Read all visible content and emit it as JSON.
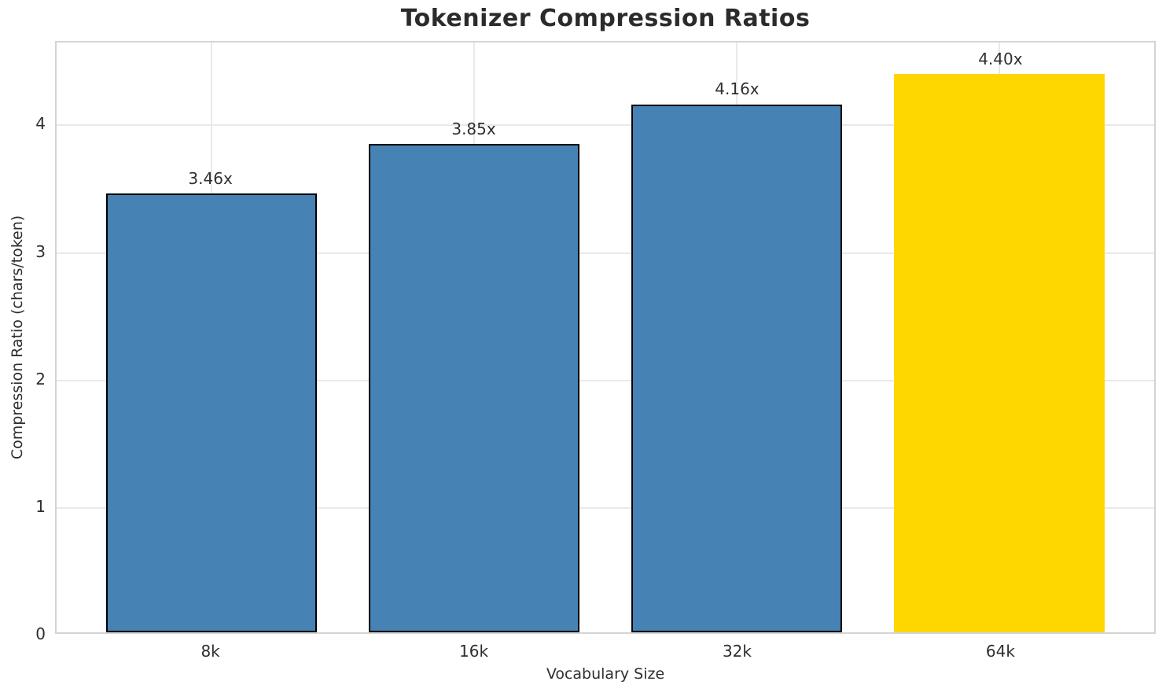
{
  "chart_data": {
    "type": "bar",
    "title": "Tokenizer Compression Ratios",
    "xlabel": "Vocabulary Size",
    "ylabel": "Compression Ratio (chars/token)",
    "categories": [
      "8k",
      "16k",
      "32k",
      "64k"
    ],
    "values": [
      3.46,
      3.85,
      4.16,
      4.4
    ],
    "bar_labels": [
      "3.46x",
      "3.85x",
      "4.16x",
      "4.40x"
    ],
    "bar_colors": [
      "#4682B4",
      "#4682B4",
      "#4682B4",
      "#FFD700"
    ],
    "bar_edge_colors": [
      "#000000",
      "#000000",
      "#000000",
      "none"
    ],
    "highlight_color": "#FFD700",
    "base_color": "#4682B4",
    "ylim": [
      0,
      4.65
    ],
    "yticks": [
      "0",
      "1",
      "2",
      "3",
      "4"
    ],
    "grid": true,
    "legend": "none"
  }
}
